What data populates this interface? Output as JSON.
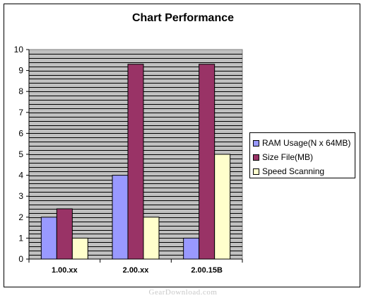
{
  "chart_data": {
    "type": "bar",
    "title": "Chart Performance",
    "categories": [
      "1.00.xx",
      "2.00.xx",
      "2.00.15B"
    ],
    "series": [
      {
        "name": "RAM Usage(N x 64MB)",
        "values": [
          2,
          4,
          1
        ],
        "color": "#9999ff"
      },
      {
        "name": "Size File(MB)",
        "values": [
          2.4,
          9.3,
          9.3
        ],
        "color": "#993366"
      },
      {
        "name": "Speed Scanning",
        "values": [
          1,
          2,
          5
        ],
        "color": "#ffffcc"
      }
    ],
    "ylim": [
      0,
      10
    ],
    "yticks": [
      "0",
      "1",
      "2",
      "3",
      "4",
      "5",
      "6",
      "7",
      "8",
      "9",
      "10"
    ],
    "plot_background": "#c0c0c0",
    "grid": true,
    "legend": "right"
  },
  "watermark": "GearDownload.com"
}
